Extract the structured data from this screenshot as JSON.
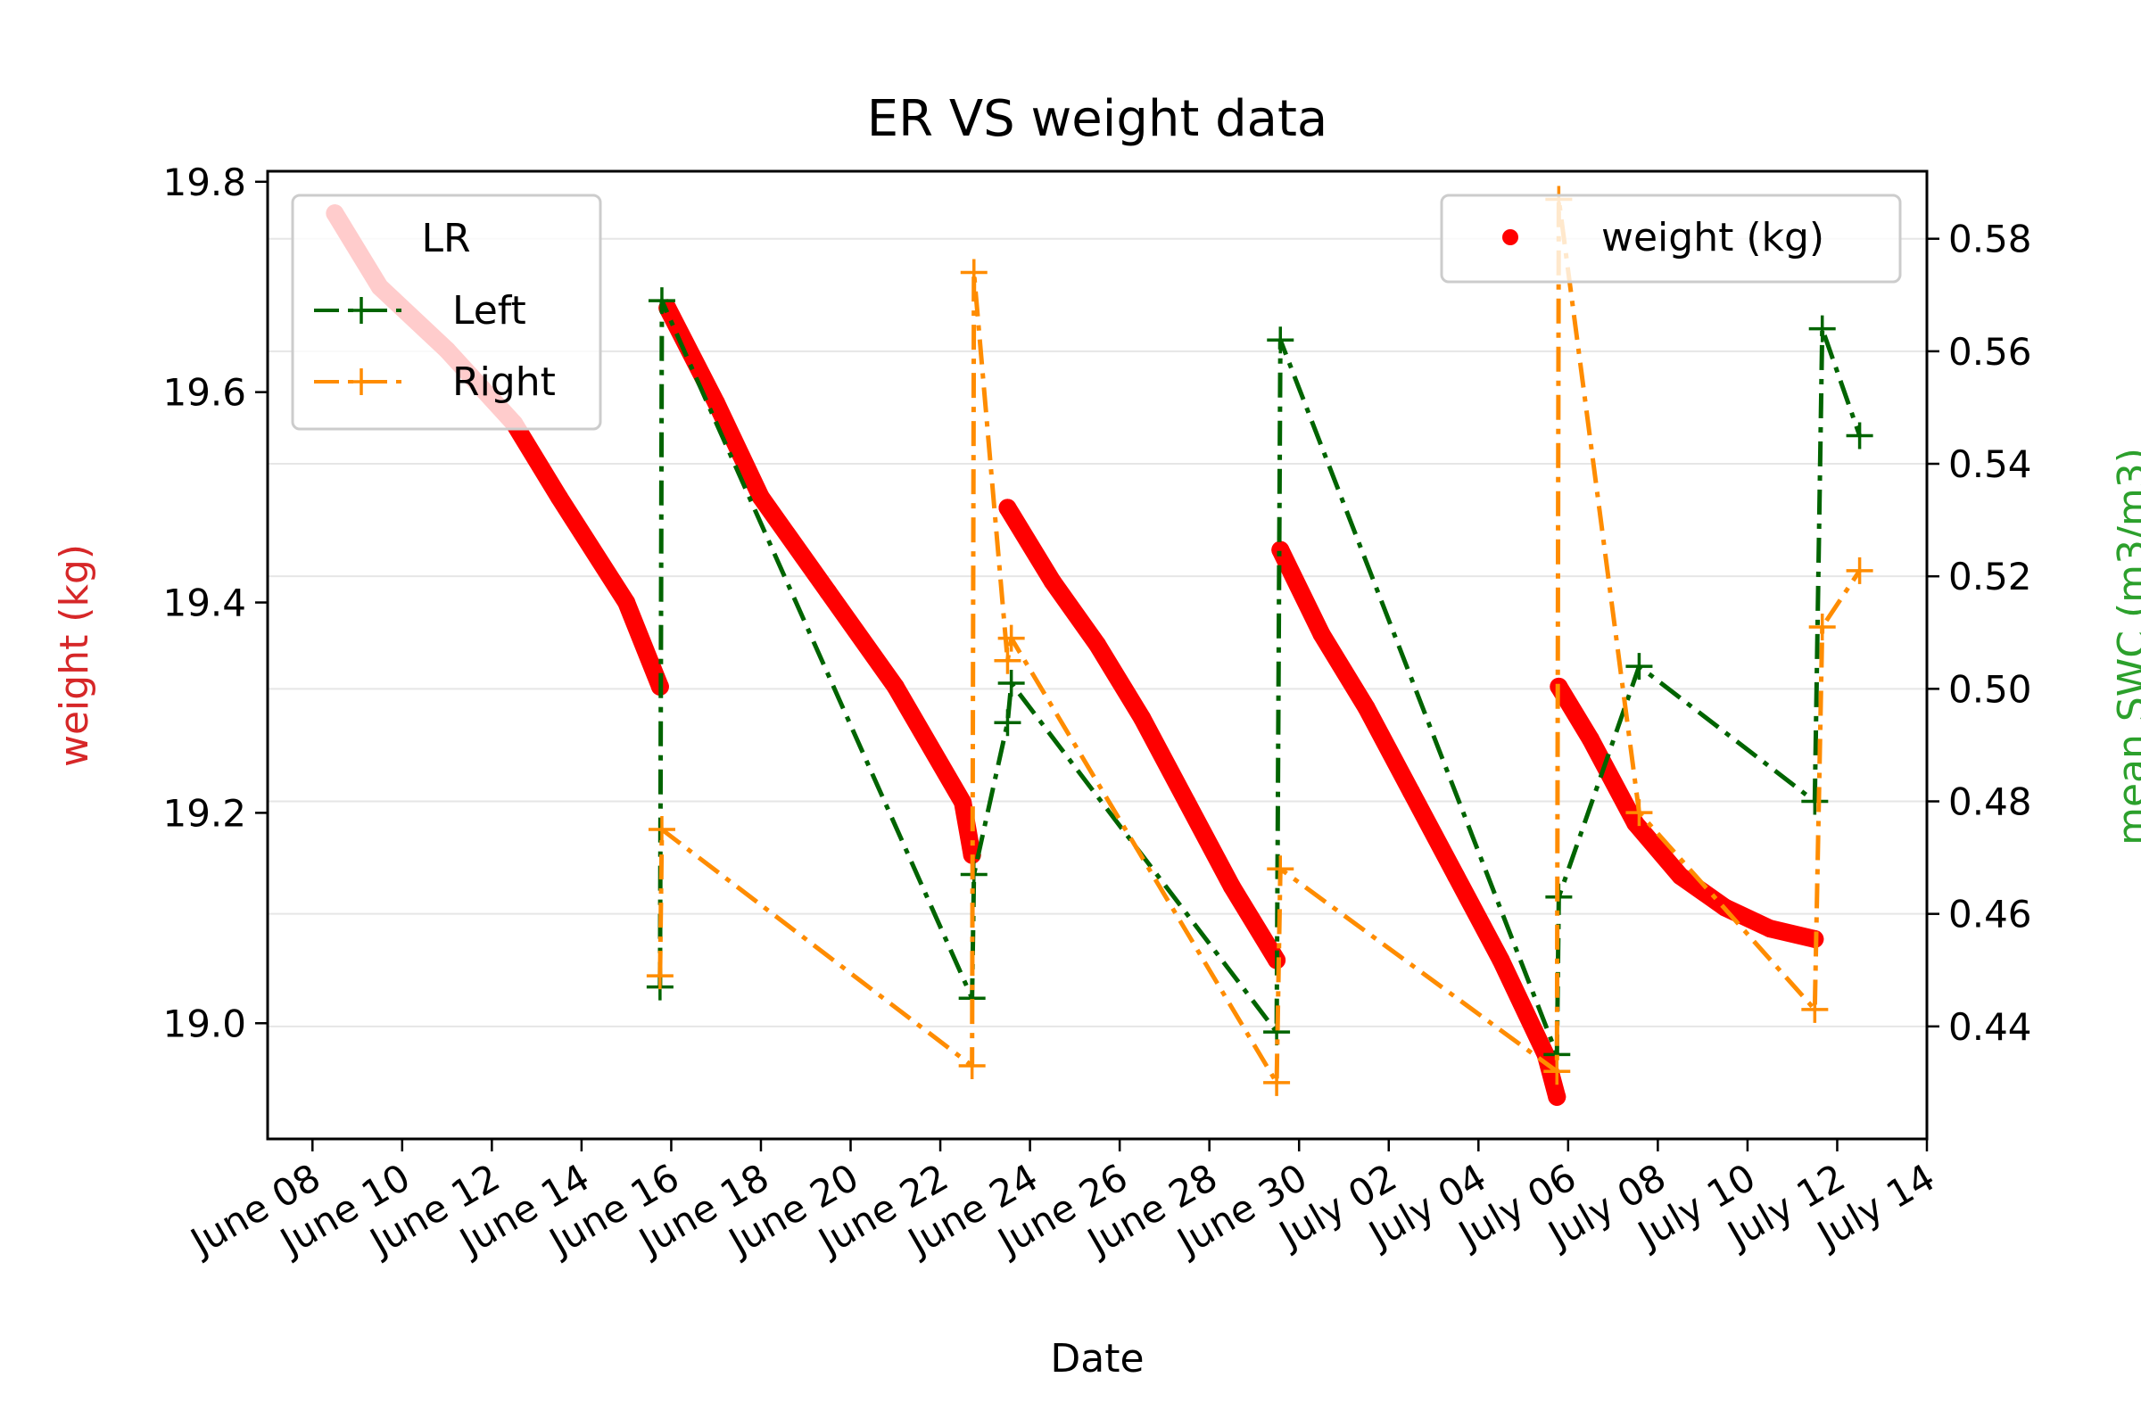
{
  "chart_data": {
    "type": "line",
    "title": "ER VS weight data",
    "xlabel": "Date",
    "ylabel_left": "weight (kg)",
    "ylabel_right": "mean SWC (m3/m3)",
    "ylabel_left_color": "#d62728",
    "ylabel_right_color": "#2ca02c",
    "xlim": [
      "2023-06-07",
      "2023-07-14"
    ],
    "ylim_left": [
      18.89,
      19.81
    ],
    "ylim_right": [
      0.42,
      0.592
    ],
    "grid": true,
    "x_ticks": [
      {
        "date": "2023-06-08",
        "label": "June 08"
      },
      {
        "date": "2023-06-10",
        "label": "June 10"
      },
      {
        "date": "2023-06-12",
        "label": "June 12"
      },
      {
        "date": "2023-06-14",
        "label": "June 14"
      },
      {
        "date": "2023-06-16",
        "label": "June 16"
      },
      {
        "date": "2023-06-18",
        "label": "June 18"
      },
      {
        "date": "2023-06-20",
        "label": "June 20"
      },
      {
        "date": "2023-06-22",
        "label": "June 22"
      },
      {
        "date": "2023-06-24",
        "label": "June 24"
      },
      {
        "date": "2023-06-26",
        "label": "June 26"
      },
      {
        "date": "2023-06-28",
        "label": "June 28"
      },
      {
        "date": "2023-06-30",
        "label": "June 30"
      },
      {
        "date": "2023-07-02",
        "label": "July 02"
      },
      {
        "date": "2023-07-04",
        "label": "July 04"
      },
      {
        "date": "2023-07-06",
        "label": "July 06"
      },
      {
        "date": "2023-07-08",
        "label": "July 08"
      },
      {
        "date": "2023-07-10",
        "label": "July 10"
      },
      {
        "date": "2023-07-12",
        "label": "July 12"
      },
      {
        "date": "2023-07-14",
        "label": "July 14"
      }
    ],
    "y_ticks_left": [
      19.0,
      19.2,
      19.4,
      19.6,
      19.8
    ],
    "y_tick_labels_left": [
      "19.0",
      "19.2",
      "19.4",
      "19.6",
      "19.8"
    ],
    "y_ticks_right": [
      0.44,
      0.46,
      0.48,
      0.5,
      0.52,
      0.54,
      0.56,
      0.58
    ],
    "y_tick_labels_right": [
      "0.44",
      "0.46",
      "0.48",
      "0.50",
      "0.52",
      "0.54",
      "0.56",
      "0.58"
    ],
    "legend_lr": {
      "title": "LR",
      "placement": "upper-left",
      "entries": [
        {
          "label": "Left",
          "color": "#006400"
        },
        {
          "label": "Right",
          "color": "#ff8c00"
        }
      ]
    },
    "legend_weight": {
      "placement": "upper-right",
      "entries": [
        {
          "label": "weight (kg)",
          "color": "#ff0000"
        }
      ]
    },
    "weight_segments": [
      {
        "x": [
          "2023-06-08T12:00",
          "2023-06-09T12:00",
          "2023-06-11T00:00",
          "2023-06-12T12:00",
          "2023-06-13T12:00",
          "2023-06-15T00:00",
          "2023-06-15T18:00"
        ],
        "y": [
          19.77,
          19.7,
          19.64,
          19.57,
          19.5,
          19.4,
          19.32
        ]
      },
      {
        "x": [
          "2023-06-15T22:00",
          "2023-06-17T00:00",
          "2023-06-18T00:00",
          "2023-06-19T12:00",
          "2023-06-21T00:00",
          "2023-06-22T12:00",
          "2023-06-22T17:00"
        ],
        "y": [
          19.68,
          19.59,
          19.5,
          19.41,
          19.32,
          19.21,
          19.16
        ]
      },
      {
        "x": [
          "2023-06-23T12:00",
          "2023-06-24T12:00",
          "2023-06-25T12:00",
          "2023-06-26T12:00",
          "2023-06-27T12:00",
          "2023-06-28T12:00",
          "2023-06-29T12:00"
        ],
        "y": [
          19.49,
          19.42,
          19.36,
          19.29,
          19.21,
          19.13,
          19.06
        ]
      },
      {
        "x": [
          "2023-06-29T14:00",
          "2023-06-30T12:00",
          "2023-07-01T12:00",
          "2023-07-02T12:00",
          "2023-07-03T12:00",
          "2023-07-04T12:00",
          "2023-07-05T12:00",
          "2023-07-05T18:00"
        ],
        "y": [
          19.45,
          19.37,
          19.3,
          19.22,
          19.14,
          19.06,
          18.97,
          18.93
        ]
      },
      {
        "x": [
          "2023-07-05T19:00",
          "2023-07-06T12:00",
          "2023-07-07T12:00",
          "2023-07-08T12:00",
          "2023-07-09T12:00",
          "2023-07-10T12:00",
          "2023-07-11T12:00"
        ],
        "y": [
          19.32,
          19.27,
          19.19,
          19.14,
          19.11,
          19.09,
          19.08
        ]
      }
    ],
    "series": [
      {
        "name": "Left",
        "color": "#006400",
        "x": [
          "2023-06-15T18:00",
          "2023-06-15T19:00",
          "2023-06-22T17:00",
          "2023-06-22T18:00",
          "2023-06-23T12:00",
          "2023-06-23T14:00",
          "2023-06-29T12:00",
          "2023-06-29T14:00",
          "2023-07-05T18:00",
          "2023-07-05T19:00",
          "2023-07-07T14:00",
          "2023-07-11T12:00",
          "2023-07-11T16:00",
          "2023-07-12T12:00"
        ],
        "y": [
          0.447,
          0.569,
          0.445,
          0.467,
          0.494,
          0.501,
          0.439,
          0.562,
          0.435,
          0.463,
          0.504,
          0.48,
          0.564,
          0.545
        ]
      },
      {
        "name": "Right",
        "color": "#ff8c00",
        "x": [
          "2023-06-15T18:00",
          "2023-06-15T19:00",
          "2023-06-22T17:00",
          "2023-06-22T18:00",
          "2023-06-23T12:00",
          "2023-06-23T14:00",
          "2023-06-29T12:00",
          "2023-06-29T14:00",
          "2023-07-05T18:00",
          "2023-07-05T19:00",
          "2023-07-07T14:00",
          "2023-07-11T12:00",
          "2023-07-11T16:00",
          "2023-07-12T12:00"
        ],
        "y": [
          0.449,
          0.475,
          0.433,
          0.574,
          0.505,
          0.509,
          0.43,
          0.468,
          0.432,
          0.587,
          0.478,
          0.443,
          0.511,
          0.521
        ]
      }
    ]
  }
}
